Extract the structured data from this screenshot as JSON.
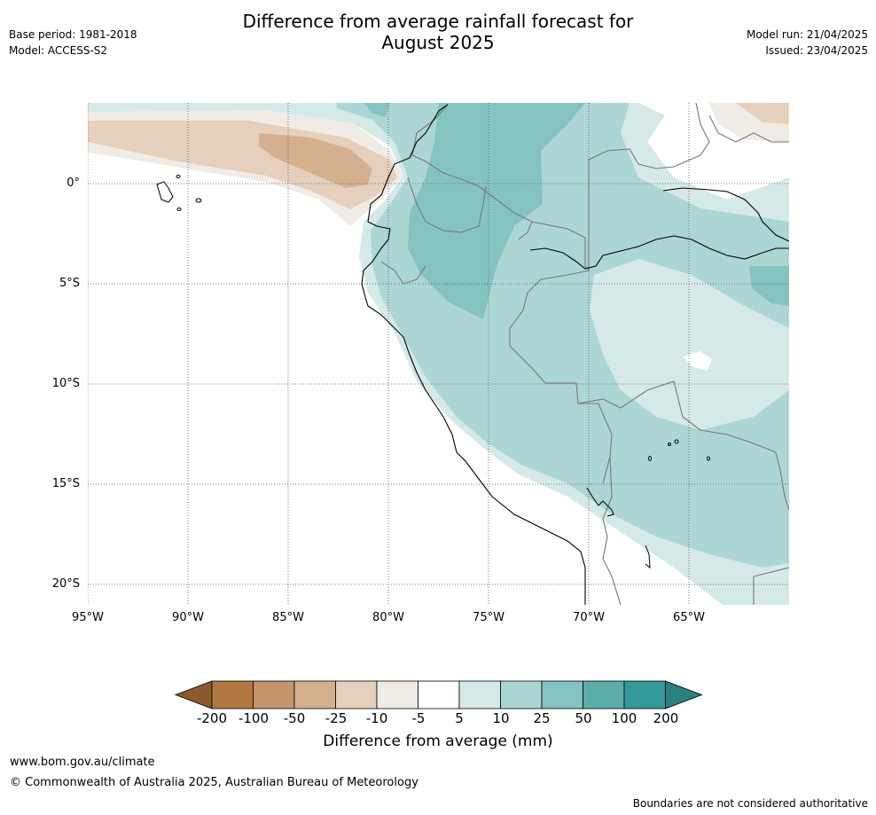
{
  "header": {
    "title_line1": "Difference from average rainfall forecast for",
    "title_line2": "August 2025",
    "base_period": "Base period: 1981-2018",
    "model": "Model: ACCESS-S2",
    "model_run": "Model run: 21/04/2025",
    "issued": "Issued: 23/04/2025"
  },
  "map": {
    "lon_range": [
      -95,
      -60
    ],
    "lat_range": [
      -21,
      4
    ],
    "lat_ticks": [
      "0°",
      "5°S",
      "10°S",
      "15°S",
      "20°S"
    ],
    "lon_ticks": [
      "95°W",
      "90°W",
      "85°W",
      "80°W",
      "75°W",
      "70°W",
      "65°W"
    ],
    "grid": true
  },
  "legend": {
    "title": "Difference from average (mm)",
    "labels": [
      "-200",
      "-100",
      "-50",
      "-25",
      "-10",
      "-5",
      "5",
      "10",
      "25",
      "50",
      "100",
      "200"
    ],
    "colors": [
      "#8a5a2c",
      "#b07840",
      "#c4956a",
      "#d5b08e",
      "#e5d0bd",
      "#f1ebe6",
      "#ffffff",
      "#d5e9e8",
      "#acd6d4",
      "#84c3c0",
      "#5cadaa",
      "#34999a",
      "#2b7f7e"
    ]
  },
  "footer": {
    "url": "www.bom.gov.au/climate",
    "copyright": "© Commonwealth of Australia 2025, Australian Bureau of Meteorology",
    "disclaimer": "Boundaries are not considered authoritative"
  }
}
